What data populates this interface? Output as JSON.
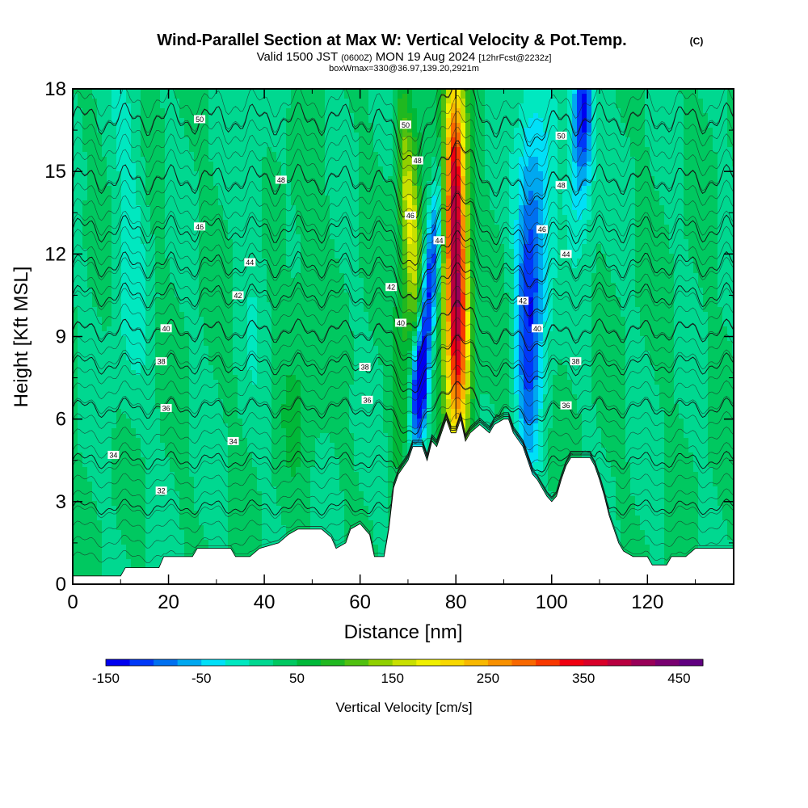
{
  "chart_data": {
    "type": "heatmap",
    "title": "Wind-Parallel Section at Max W: Vertical Velocity & Pot.Temp.",
    "title_mark": "(C)",
    "subtitle_main": "Valid 1500 JST",
    "subtitle_utc": "(0600Z)",
    "subtitle_date": "MON 19 Aug 2024",
    "subtitle_fcst": "[12hrFcst@2232z]",
    "subtitle2": "boxWmax=330@36.97,139.20,2921m",
    "xlabel": "Distance [nm]",
    "ylabel": "Height [Kft MSL]",
    "xlim": [
      0,
      138
    ],
    "ylim": [
      0,
      18
    ],
    "x_ticks": [
      0,
      20,
      40,
      60,
      80,
      100,
      120
    ],
    "y_ticks": [
      0,
      3,
      6,
      9,
      12,
      15,
      18
    ],
    "x_tick_labels": [
      "0",
      "20",
      "40",
      "60",
      "80",
      "100",
      "120"
    ],
    "y_tick_labels": [
      "0",
      "3",
      "6",
      "9",
      "12",
      "15",
      "18"
    ],
    "grid": false,
    "colorbar": {
      "label": "Vertical Velocity [cm/s]",
      "min": -150,
      "max": 475,
      "step": 25,
      "tick_labels": [
        "-150",
        "-50",
        "50",
        "150",
        "250",
        "350",
        "450"
      ],
      "tick_values": [
        -150,
        -50,
        50,
        150,
        250,
        350,
        450
      ],
      "colors": [
        "#0000f0",
        "#0038f8",
        "#0070f0",
        "#00a8f0",
        "#00e0f8",
        "#00e8c0",
        "#00d890",
        "#00c860",
        "#00b838",
        "#20b820",
        "#50c010",
        "#90d000",
        "#c8e000",
        "#f0f000",
        "#f8d800",
        "#f8b800",
        "#f89000",
        "#f86800",
        "#f83800",
        "#f00010",
        "#d80028",
        "#b80040",
        "#980058",
        "#780070",
        "#600080"
      ]
    },
    "terrain_kft": [
      [
        0,
        0.3
      ],
      [
        10,
        0.3
      ],
      [
        11,
        0.6
      ],
      [
        18,
        0.6
      ],
      [
        19,
        1.0
      ],
      [
        25,
        1.0
      ],
      [
        26,
        1.3
      ],
      [
        33,
        1.3
      ],
      [
        34,
        1.0
      ],
      [
        37,
        1.0
      ],
      [
        39,
        1.3
      ],
      [
        43,
        1.5
      ],
      [
        45,
        1.8
      ],
      [
        47,
        2.0
      ],
      [
        52,
        2.0
      ],
      [
        54,
        1.7
      ],
      [
        55,
        1.3
      ],
      [
        57,
        1.5
      ],
      [
        58,
        2.0
      ],
      [
        60,
        2.2
      ],
      [
        62,
        1.8
      ],
      [
        63,
        1.0
      ],
      [
        65,
        1.0
      ],
      [
        66,
        2.0
      ],
      [
        67,
        3.5
      ],
      [
        68,
        4.0
      ],
      [
        70,
        4.5
      ],
      [
        71,
        5.0
      ],
      [
        73,
        5.0
      ],
      [
        74,
        4.5
      ],
      [
        75,
        5.2
      ],
      [
        76,
        5.0
      ],
      [
        77,
        5.5
      ],
      [
        78,
        6.0
      ],
      [
        79,
        5.5
      ],
      [
        80,
        5.5
      ],
      [
        81,
        6.0
      ],
      [
        82,
        5.2
      ],
      [
        83,
        5.5
      ],
      [
        85,
        5.8
      ],
      [
        87,
        5.5
      ],
      [
        88,
        5.8
      ],
      [
        90,
        6.0
      ],
      [
        91,
        6.0
      ],
      [
        92,
        5.5
      ],
      [
        94,
        5.0
      ],
      [
        95,
        4.5
      ],
      [
        96,
        4.0
      ],
      [
        97,
        3.8
      ],
      [
        98,
        3.5
      ],
      [
        99,
        3.2
      ],
      [
        100,
        3.0
      ],
      [
        101,
        3.2
      ],
      [
        102,
        3.8
      ],
      [
        103,
        4.3
      ],
      [
        104,
        4.6
      ],
      [
        107,
        4.6
      ],
      [
        108,
        4.6
      ],
      [
        109,
        4.3
      ],
      [
        110,
        3.8
      ],
      [
        111,
        3.2
      ],
      [
        112,
        2.5
      ],
      [
        113,
        2.0
      ],
      [
        114,
        1.5
      ],
      [
        115,
        1.2
      ],
      [
        117,
        1.0
      ],
      [
        120,
        1.0
      ],
      [
        121,
        0.7
      ],
      [
        124,
        0.7
      ],
      [
        125,
        1.0
      ],
      [
        128,
        1.0
      ],
      [
        130,
        1.3
      ],
      [
        138,
        1.3
      ]
    ],
    "updraft_core": {
      "x": 80,
      "peak_vertical_velocity_cm_s": 330,
      "peak_height_kft": 12
    },
    "theta_contours": [
      {
        "value": 32,
        "label": "32",
        "z0": 2.8
      },
      {
        "value": 34,
        "label": "34",
        "z0": 4.5
      },
      {
        "value": 36,
        "label": "36",
        "z0": 6.4
      },
      {
        "value": 38,
        "label": "38",
        "z0": 8.0
      },
      {
        "value": 40,
        "label": "40",
        "z0": 9.2
      },
      {
        "value": 42,
        "label": "42",
        "z0": 10.5
      },
      {
        "value": 44,
        "label": "44",
        "z0": 11.6
      },
      {
        "value": 46,
        "label": "46",
        "z0": 12.9
      },
      {
        "value": 48,
        "label": "48",
        "z0": 14.7
      },
      {
        "value": 50,
        "label": "50",
        "z0": 16.9
      }
    ],
    "contour_labels": [
      {
        "label": "50",
        "x": 26.5,
        "z": 16.9
      },
      {
        "label": "50",
        "x": 69.5,
        "z": 16.7
      },
      {
        "label": "50",
        "x": 102,
        "z": 16.3
      },
      {
        "label": "48",
        "x": 43.5,
        "z": 14.7
      },
      {
        "label": "48",
        "x": 72,
        "z": 15.4
      },
      {
        "label": "48",
        "x": 102,
        "z": 14.5
      },
      {
        "label": "46",
        "x": 26.5,
        "z": 13.0
      },
      {
        "label": "46",
        "x": 70.5,
        "z": 13.4
      },
      {
        "label": "46",
        "x": 98,
        "z": 12.9
      },
      {
        "label": "44",
        "x": 37,
        "z": 11.7
      },
      {
        "label": "44",
        "x": 76.5,
        "z": 12.5
      },
      {
        "label": "44",
        "x": 103,
        "z": 12.0
      },
      {
        "label": "42",
        "x": 34.5,
        "z": 10.5
      },
      {
        "label": "42",
        "x": 66.5,
        "z": 10.8
      },
      {
        "label": "42",
        "x": 94,
        "z": 10.3
      },
      {
        "label": "40",
        "x": 19.5,
        "z": 9.3
      },
      {
        "label": "40",
        "x": 68.5,
        "z": 9.5
      },
      {
        "label": "40",
        "x": 97,
        "z": 9.3
      },
      {
        "label": "38",
        "x": 18.5,
        "z": 8.1
      },
      {
        "label": "38",
        "x": 61,
        "z": 7.9
      },
      {
        "label": "38",
        "x": 105,
        "z": 8.1
      },
      {
        "label": "36",
        "x": 19.5,
        "z": 6.4
      },
      {
        "label": "36",
        "x": 61.5,
        "z": 6.7
      },
      {
        "label": "36",
        "x": 103,
        "z": 6.5
      },
      {
        "label": "34",
        "x": 8.5,
        "z": 4.7
      },
      {
        "label": "34",
        "x": 33.5,
        "z": 5.2
      },
      {
        "label": "32",
        "x": 18.5,
        "z": 3.4
      }
    ]
  }
}
